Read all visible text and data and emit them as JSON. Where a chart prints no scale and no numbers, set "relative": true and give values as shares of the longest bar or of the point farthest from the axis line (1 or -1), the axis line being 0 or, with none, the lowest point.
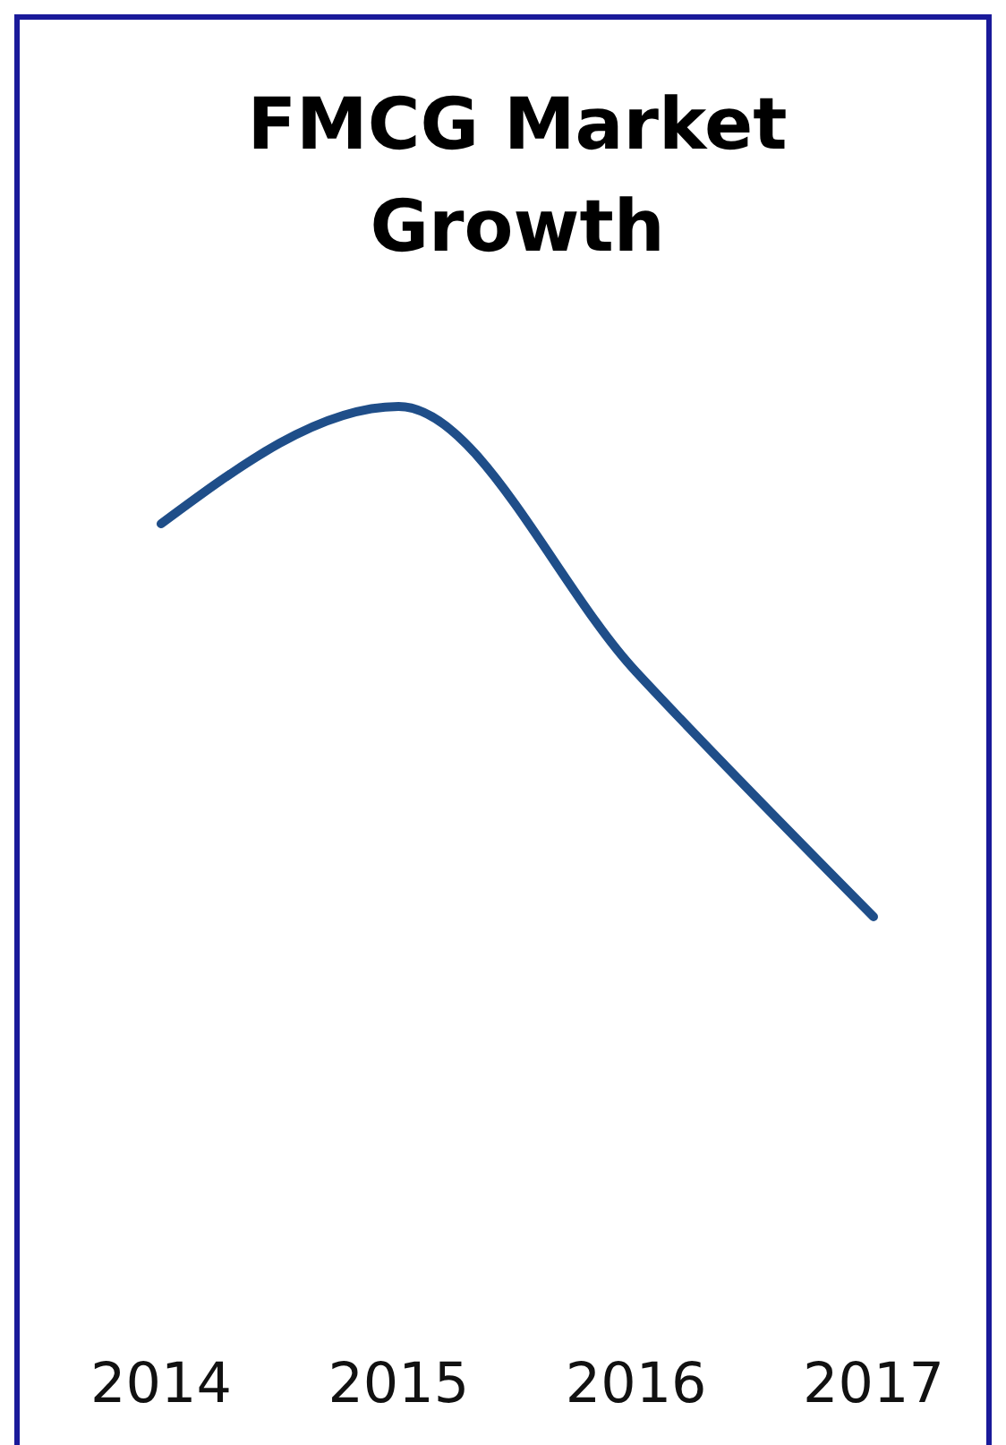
{
  "chart_data": {
    "type": "line",
    "title": "FMCG Market Growth",
    "relative": true,
    "categories": [
      "2014",
      "2015",
      "2016",
      "2017"
    ],
    "series": [
      {
        "color": "#1f4e89",
        "values": [
          0.77,
          1,
          0.48,
          0
        ]
      }
    ],
    "grid": false,
    "marker": "none",
    "line_style": "solid"
  }
}
